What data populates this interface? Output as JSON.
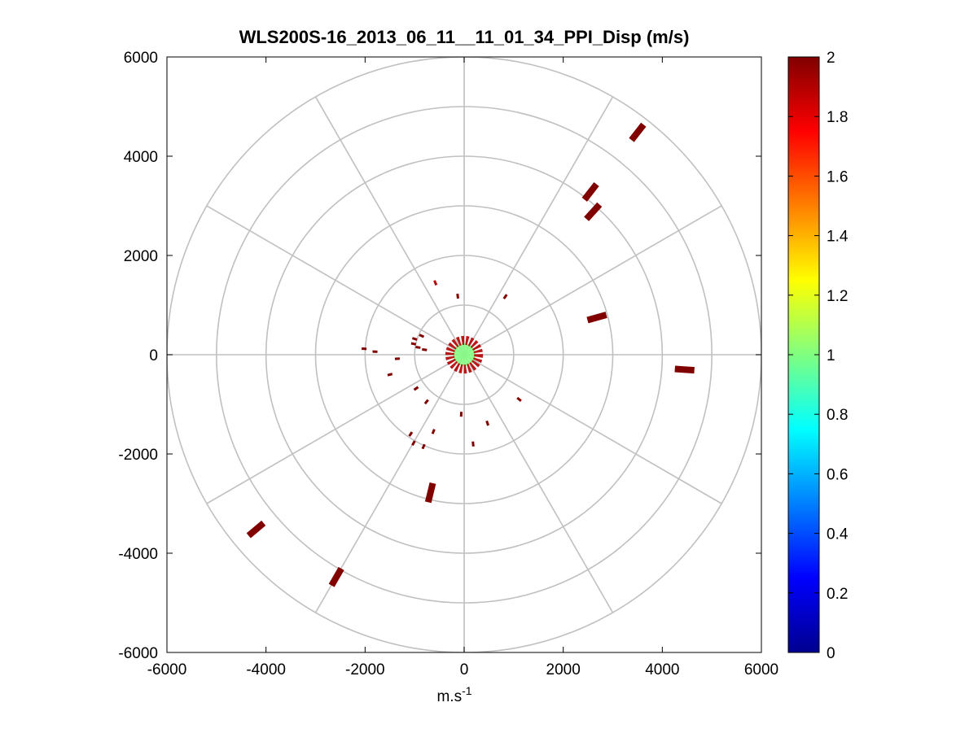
{
  "chart_data": {
    "type": "scatter",
    "title": "WLS200S-16_2013_06_11__11_01_34_PPI_Disp (m/s)",
    "xlabel": {
      "base": "m.s",
      "sup": "-1"
    },
    "ylabel": "",
    "xlim": [
      -6000,
      6000
    ],
    "ylim": [
      -6000,
      6000
    ],
    "x_ticks": [
      "-6000",
      "-4000",
      "-2000",
      "0",
      "2000",
      "4000",
      "6000"
    ],
    "y_ticks": [
      "6000",
      "4000",
      "2000",
      "0",
      "-2000",
      "-4000",
      "-6000"
    ],
    "x_tick_values": [
      -6000,
      -4000,
      -2000,
      0,
      2000,
      4000,
      6000
    ],
    "y_tick_values": [
      6000,
      4000,
      2000,
      0,
      -2000,
      -4000,
      -6000
    ],
    "polar_grid": {
      "ring_radii": [
        1000,
        2000,
        3000,
        4000,
        5000,
        6000
      ],
      "spoke_angles_deg": [
        0,
        30,
        60,
        90,
        120,
        150,
        180,
        210,
        240,
        270,
        300,
        330
      ],
      "color": "#c0c0c0"
    },
    "colorbar": {
      "min": 0,
      "max": 2,
      "ticks": [
        "0",
        "0.2",
        "0.4",
        "0.6",
        "0.8",
        "1",
        "1.2",
        "1.4",
        "1.6",
        "1.8",
        "2"
      ],
      "tick_values": [
        0,
        0.2,
        0.4,
        0.6,
        0.8,
        1,
        1.2,
        1.4,
        1.6,
        1.8,
        2
      ],
      "colormap": "jet",
      "levels": 64
    },
    "points": [
      {
        "x": 3500,
        "y": 4480,
        "value": 2
      },
      {
        "x": 2550,
        "y": 3280,
        "value": 2
      },
      {
        "x": 2600,
        "y": 2880,
        "value": 2
      },
      {
        "x": 2680,
        "y": 750,
        "value": 2
      },
      {
        "x": 4450,
        "y": -300,
        "value": 2
      },
      {
        "x": -4200,
        "y": -3520,
        "value": 2
      },
      {
        "x": -2580,
        "y": -4480,
        "value": 2
      },
      {
        "x": -680,
        "y": -2780,
        "value": 2
      },
      {
        "x": -130,
        "y": 1180,
        "value": 2
      },
      {
        "x": -580,
        "y": 1450,
        "value": 1.9
      },
      {
        "x": 830,
        "y": 1170,
        "value": 2
      },
      {
        "x": -1000,
        "y": 320,
        "value": 2
      },
      {
        "x": -1020,
        "y": 220,
        "value": 2
      },
      {
        "x": -860,
        "y": 380,
        "value": 2
      },
      {
        "x": -930,
        "y": 150,
        "value": 2
      },
      {
        "x": -800,
        "y": 100,
        "value": 2
      },
      {
        "x": -1350,
        "y": -80,
        "value": 2
      },
      {
        "x": -1800,
        "y": 60,
        "value": 2
      },
      {
        "x": -2020,
        "y": 120,
        "value": 2
      },
      {
        "x": -1500,
        "y": -400,
        "value": 2
      },
      {
        "x": -970,
        "y": -680,
        "value": 2
      },
      {
        "x": -760,
        "y": -950,
        "value": 2
      },
      {
        "x": -1080,
        "y": -1600,
        "value": 2
      },
      {
        "x": -1020,
        "y": -1780,
        "value": 2
      },
      {
        "x": -820,
        "y": -1850,
        "value": 2
      },
      {
        "x": -60,
        "y": -1200,
        "value": 2
      },
      {
        "x": 470,
        "y": -1380,
        "value": 2
      },
      {
        "x": 180,
        "y": -1800,
        "value": 2
      },
      {
        "x": 1110,
        "y": -900,
        "value": 2
      },
      {
        "x": -620,
        "y": -1550,
        "value": 2
      }
    ],
    "center_ring": {
      "inner_radius": 200,
      "outer_radius": 380,
      "value": 1.9
    },
    "center_disk": {
      "radius": 230,
      "value": 1.0
    }
  }
}
